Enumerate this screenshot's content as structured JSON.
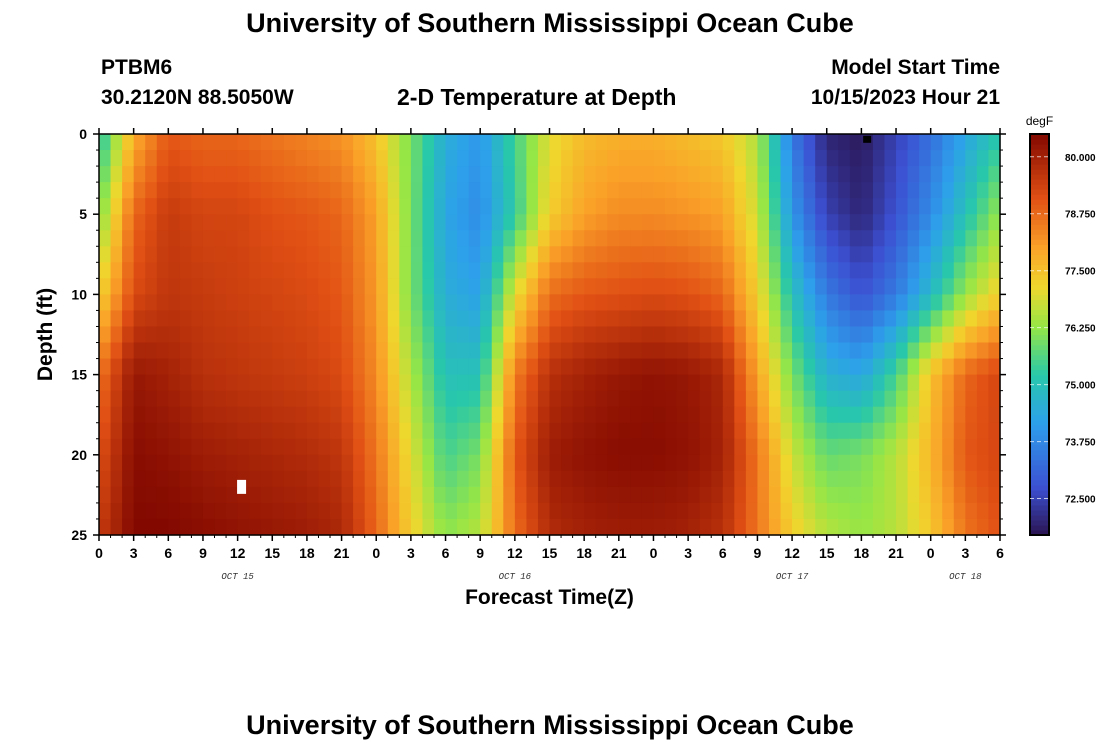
{
  "page": {
    "title_top": "University of Southern Mississippi Ocean Cube",
    "title_bottom": "University of Southern Mississippi Ocean Cube",
    "station": "PTBM6",
    "coords": "30.2120N  88.5050W",
    "chart_title": "2-D Temperature at Depth",
    "model_start_label": "Model Start Time",
    "model_start_value": "10/15/2023 Hour 21"
  },
  "chart_data": {
    "type": "heatmap",
    "title": "2-D Temperature at Depth",
    "xlabel": "Forecast Time(Z)",
    "ylabel": "Depth (ft)",
    "colorbar_label": "degF",
    "colorbar_ticks": [
      "80.000",
      "78.750",
      "77.500",
      "76.250",
      "75.000",
      "73.750",
      "72.500"
    ],
    "colorbar_values": [
      80.0,
      78.75,
      77.5,
      76.25,
      75.0,
      73.75,
      72.5
    ],
    "crange": [
      71.7,
      80.5
    ],
    "xlim": [
      0,
      78
    ],
    "ylim": [
      0,
      25
    ],
    "y_reversed": true,
    "y_ticks": [
      "0",
      "5",
      "10",
      "15",
      "20",
      "25"
    ],
    "x_tick_labels": [
      "0",
      "3",
      "6",
      "9",
      "12",
      "15",
      "18",
      "21",
      "0",
      "3",
      "6",
      "9",
      "12",
      "15",
      "18",
      "21",
      "0",
      "3",
      "6",
      "9",
      "12",
      "15",
      "18",
      "21",
      "0",
      "3",
      "6"
    ],
    "x_tick_hours": [
      0,
      3,
      6,
      9,
      12,
      15,
      18,
      21,
      24,
      27,
      30,
      33,
      36,
      39,
      42,
      45,
      48,
      51,
      54,
      57,
      60,
      63,
      66,
      69,
      72,
      75,
      78
    ],
    "date_labels": [
      {
        "label": "OCT 15",
        "hour": 12
      },
      {
        "label": "OCT 16",
        "hour": 36
      },
      {
        "label": "OCT 17",
        "hour": 60
      },
      {
        "label": "OCT 18",
        "hour": 75
      }
    ],
    "depth_levels": [
      0,
      5,
      10,
      15,
      20,
      25
    ],
    "hours": [
      0,
      3,
      6,
      9,
      12,
      15,
      18,
      21,
      24,
      27,
      30,
      33,
      36,
      39,
      42,
      45,
      48,
      51,
      54,
      57,
      60,
      63,
      66,
      69,
      72,
      75,
      78
    ],
    "temperature_degF": [
      [
        75.0,
        77.8,
        79.0,
        78.8,
        78.8,
        78.6,
        78.4,
        78.2,
        77.5,
        76.0,
        74.5,
        74.0,
        75.5,
        77.0,
        77.6,
        77.8,
        77.8,
        77.6,
        77.4,
        76.5,
        73.5,
        72.0,
        71.8,
        72.5,
        73.3,
        74.3,
        75.2
      ],
      [
        76.0,
        78.8,
        79.5,
        79.3,
        79.3,
        79.1,
        79.0,
        78.8,
        78.0,
        76.0,
        74.3,
        73.8,
        75.3,
        77.3,
        78.0,
        78.3,
        78.3,
        78.2,
        78.0,
        76.8,
        74.0,
        72.5,
        72.0,
        72.8,
        73.8,
        75.0,
        76.3
      ],
      [
        77.2,
        79.2,
        79.6,
        79.5,
        79.4,
        79.3,
        79.2,
        79.0,
        78.1,
        76.0,
        74.5,
        74.2,
        77.0,
        78.7,
        79.0,
        79.1,
        79.2,
        79.1,
        78.8,
        77.3,
        75.0,
        73.5,
        72.8,
        73.5,
        74.8,
        76.3,
        77.3
      ],
      [
        78.6,
        80.2,
        80.0,
        79.7,
        79.6,
        79.5,
        79.4,
        79.2,
        78.3,
        76.5,
        75.0,
        75.0,
        78.5,
        79.7,
        80.0,
        80.2,
        80.3,
        80.2,
        79.9,
        78.0,
        76.0,
        74.6,
        74.3,
        75.5,
        77.5,
        78.8,
        79.3
      ],
      [
        79.1,
        80.4,
        80.3,
        80.1,
        80.0,
        79.9,
        79.8,
        79.6,
        78.6,
        77.0,
        75.5,
        76.0,
        79.0,
        80.1,
        80.3,
        80.4,
        80.4,
        80.3,
        80.0,
        78.6,
        76.8,
        75.8,
        76.0,
        76.6,
        77.7,
        79.0,
        79.3
      ],
      [
        79.5,
        80.5,
        80.5,
        80.4,
        80.3,
        80.2,
        80.1,
        79.9,
        78.8,
        77.3,
        76.2,
        76.6,
        78.7,
        79.8,
        80.0,
        80.1,
        80.1,
        80.0,
        79.7,
        78.6,
        77.3,
        76.6,
        76.3,
        76.6,
        77.4,
        78.6,
        79.1
      ]
    ],
    "markers": [
      {
        "hour": 66.5,
        "depth": 0.3,
        "color": "black"
      },
      {
        "hour": 12.3,
        "depth": 22.0,
        "color": "white"
      }
    ],
    "colors": {
      "low": "#2a1450",
      "mid": "#2ec4a8",
      "high": "#8b0a00"
    }
  },
  "icons": {
    "colorbar": "colorbar-gradient"
  }
}
